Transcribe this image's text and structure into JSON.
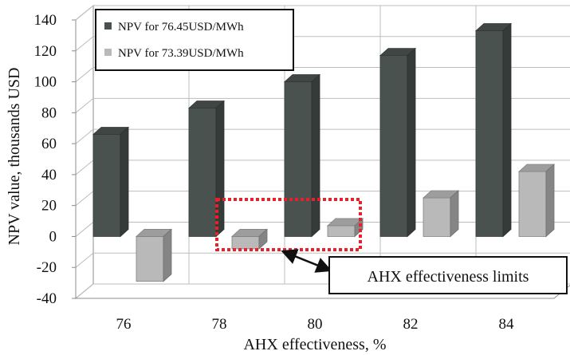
{
  "chart_data": {
    "type": "bar",
    "categories": [
      "76",
      "78",
      "80",
      "82",
      "84"
    ],
    "series": [
      {
        "name": "NPV for 76.45USD/MWh",
        "values": [
          66,
          83,
          100,
          117,
          133
        ],
        "color": "#4a524f"
      },
      {
        "name": "NPV for 73.39USD/MWh",
        "values": [
          -29,
          -8,
          7,
          25,
          42
        ],
        "color": "#b9b9b9"
      }
    ],
    "xlabel": "AHX effectiveness, %",
    "ylabel": "NPV value, thousands USD",
    "ylim": [
      -40,
      140
    ],
    "yticks": [
      "-40",
      "-20",
      "0",
      "20",
      "40",
      "60",
      "80",
      "100",
      "120",
      "140"
    ],
    "grid": true,
    "legend_position": "top-left",
    "annotation": {
      "text": "AHX  effectiveness limits",
      "highlight_color": "#e8202a"
    }
  }
}
